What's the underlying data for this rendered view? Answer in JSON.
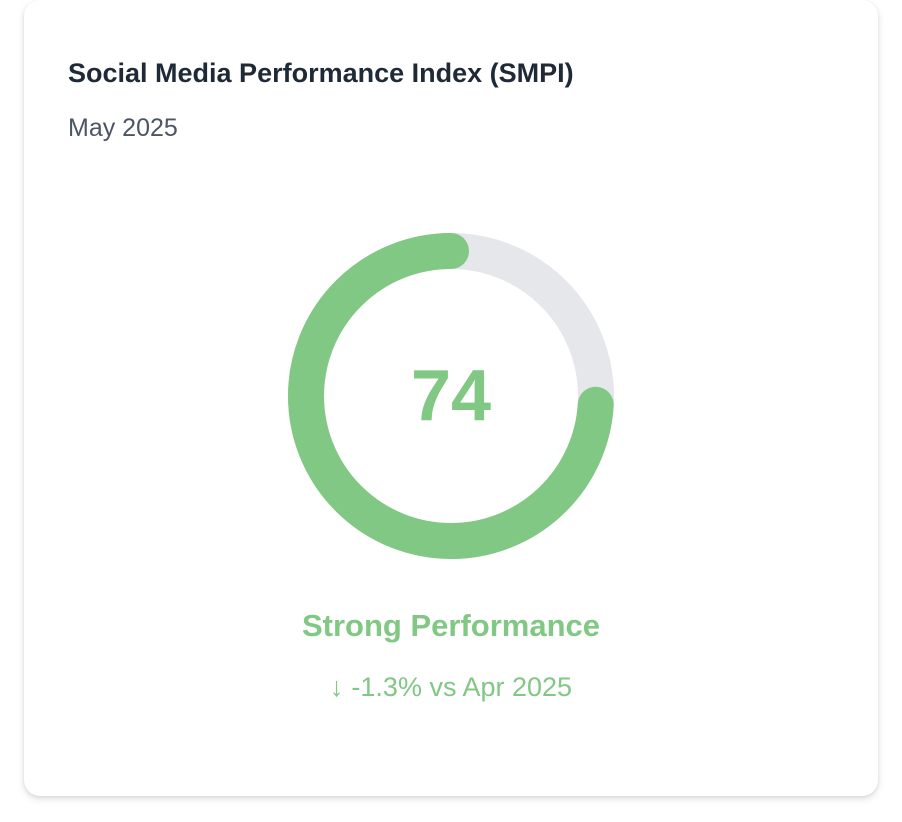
{
  "card": {
    "title": "Social Media Performance Index (SMPI)",
    "period": "May 2025"
  },
  "gauge": {
    "score": 74,
    "score_text": "74",
    "max": 100,
    "fill_fraction": 0.74,
    "fill_color": "#80c883",
    "track_color": "#e5e7eb"
  },
  "status": {
    "label": "Strong Performance",
    "color": "#80c883"
  },
  "comparison": {
    "arrow_icon": "arrow-down-icon",
    "arrow_glyph": "↓",
    "text": "-1.3% vs Apr 2025"
  }
}
